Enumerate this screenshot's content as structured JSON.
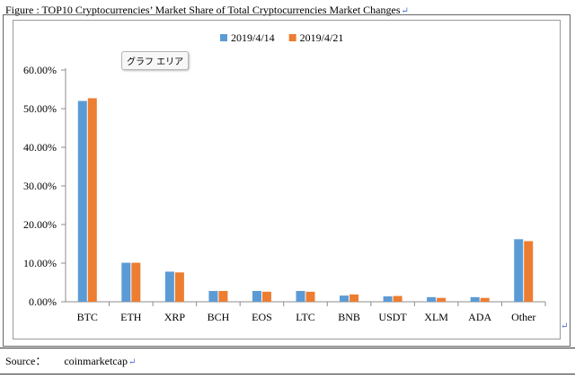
{
  "caption": {
    "text": "Figure : TOP10 Cryptocurrencies’ Market Share of Total Cryptocurrencies Market Changes",
    "return_mark": "↵"
  },
  "tooltip": {
    "text": "グラフ エリア"
  },
  "source": {
    "label": "Source：",
    "value": "coinmarketcap",
    "return_mark": "↵"
  },
  "paragraph_mark": "↵",
  "colors": {
    "series_1": "#5b9bd5",
    "series_2": "#ed7d31"
  },
  "chart_data": {
    "type": "bar",
    "title": "",
    "xlabel": "",
    "ylabel": "",
    "categories": [
      "BTC",
      "ETH",
      "XRP",
      "BCH",
      "EOS",
      "LTC",
      "BNB",
      "USDT",
      "XLM",
      "ADA",
      "Other"
    ],
    "series": [
      {
        "name": "2019/4/14",
        "color": "#5b9bd5",
        "values": [
          52.0,
          10.1,
          7.8,
          2.8,
          2.8,
          2.8,
          1.6,
          1.4,
          1.2,
          1.2,
          16.2
        ]
      },
      {
        "name": "2019/4/21",
        "color": "#ed7d31",
        "values": [
          52.7,
          10.1,
          7.6,
          2.8,
          2.6,
          2.6,
          1.9,
          1.5,
          1.0,
          1.0,
          15.7
        ]
      }
    ],
    "ylim": [
      0,
      60
    ],
    "yticks": [
      0,
      10,
      20,
      30,
      40,
      50,
      60
    ],
    "ytick_labels": [
      "0.00%",
      "10.00%",
      "20.00%",
      "30.00%",
      "40.00%",
      "50.00%",
      "60.00%"
    ],
    "grid": false,
    "legend": "top-center"
  }
}
